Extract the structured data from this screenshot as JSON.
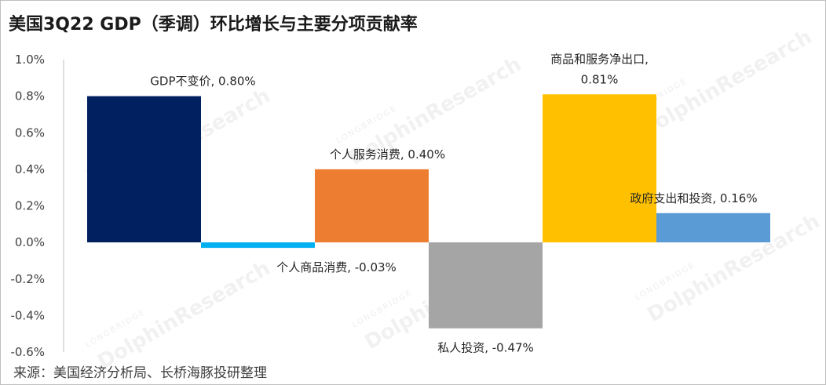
{
  "title": "美国3Q22 GDP（季调）环比增长与主要分项贡献率",
  "source": "来源：美国经济分析局、长桥海豚投研整理",
  "watermark": {
    "brand": "DolphinResearch",
    "sub": "LONGBRIDGE"
  },
  "chart_data": {
    "type": "bar",
    "categories": [
      "GDP不变价",
      "个人商品消费",
      "个人服务消费",
      "私人投资",
      "商品和服务净出口",
      "政府支出和投资"
    ],
    "values": [
      0.8,
      -0.03,
      0.4,
      -0.47,
      0.81,
      0.16
    ],
    "data_labels": [
      [
        "GDP不变价, 0.80%"
      ],
      [
        "个人商品消费, -0.03%"
      ],
      [
        "个人服务消费, 0.40%"
      ],
      [
        "私人投资, -0.47%"
      ],
      [
        "商品和服务净出口,",
        "0.81%"
      ],
      [
        "政府支出和投资, 0.16%"
      ]
    ],
    "colors": [
      "#002060",
      "#00b0f0",
      "#ed7d31",
      "#a5a5a5",
      "#ffc000",
      "#5b9bd5"
    ],
    "ylim": [
      -0.6,
      1.0
    ],
    "yticks": [
      1.0,
      0.8,
      0.6,
      0.4,
      0.2,
      0.0,
      -0.2,
      -0.4,
      -0.6
    ],
    "ytick_labels": [
      "1.0%",
      "0.8%",
      "0.6%",
      "0.4%",
      "0.2%",
      "0.0%",
      "-0.2%",
      "-0.4%",
      "-0.6%"
    ],
    "grid": false,
    "legend": false
  }
}
